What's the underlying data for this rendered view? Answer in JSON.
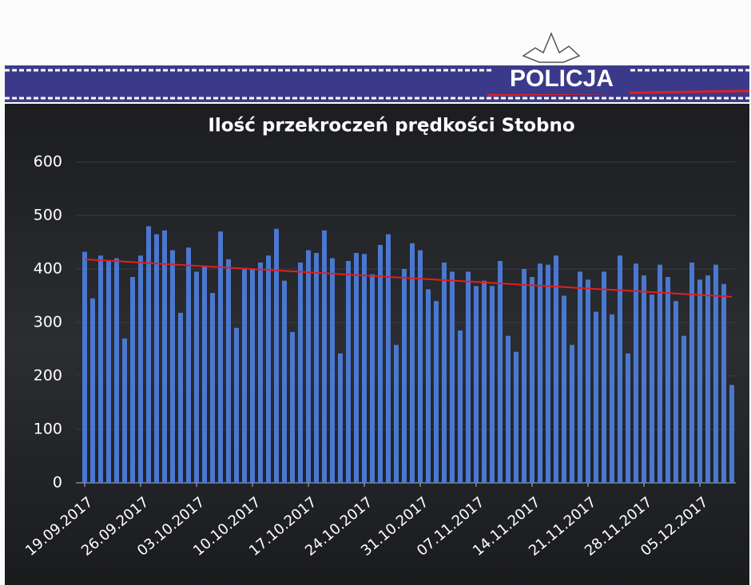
{
  "header": {
    "brand": "POLICJA"
  },
  "chart_data": {
    "type": "bar",
    "title": "Ilość przekroczeń prędkości Stobno",
    "categories": [
      "19.09.2017",
      null,
      null,
      null,
      null,
      null,
      null,
      "26.09.2017",
      null,
      null,
      null,
      null,
      null,
      null,
      "03.10.2017",
      null,
      null,
      null,
      null,
      null,
      null,
      "10.10.2017",
      null,
      null,
      null,
      null,
      null,
      null,
      "17.10.2017",
      null,
      null,
      null,
      null,
      null,
      null,
      "24.10.2017",
      null,
      null,
      null,
      null,
      null,
      null,
      "31.10.2017",
      null,
      null,
      null,
      null,
      null,
      null,
      "07.11.2017",
      null,
      null,
      null,
      null,
      null,
      null,
      "14.11.2017",
      null,
      null,
      null,
      null,
      null,
      null,
      "21.11.2017",
      null,
      null,
      null,
      null,
      null,
      null,
      "28.11.2017",
      null,
      null,
      null,
      null,
      null,
      null,
      "05.12.2017",
      null,
      null,
      null,
      null
    ],
    "values": [
      432,
      345,
      425,
      415,
      420,
      270,
      385,
      425,
      480,
      465,
      472,
      435,
      318,
      440,
      395,
      405,
      355,
      470,
      418,
      290,
      400,
      400,
      412,
      425,
      475,
      378,
      282,
      412,
      435,
      430,
      472,
      420,
      242,
      415,
      430,
      428,
      390,
      445,
      465,
      258,
      400,
      448,
      435,
      362,
      340,
      412,
      395,
      285,
      395,
      368,
      378,
      368,
      415,
      275,
      245,
      400,
      385,
      410,
      408,
      425,
      350,
      258,
      395,
      380,
      320,
      395,
      315,
      425,
      242,
      410,
      388,
      352,
      408,
      385,
      340,
      275,
      412,
      380,
      388,
      408,
      372,
      183
    ],
    "color": "#4a78d0",
    "trendline": {
      "start": 418,
      "end": 348,
      "color": "#e02020"
    },
    "ylim": [
      0,
      600
    ],
    "yticks": [
      0,
      100,
      200,
      300,
      400,
      500,
      600
    ],
    "grid": true
  }
}
